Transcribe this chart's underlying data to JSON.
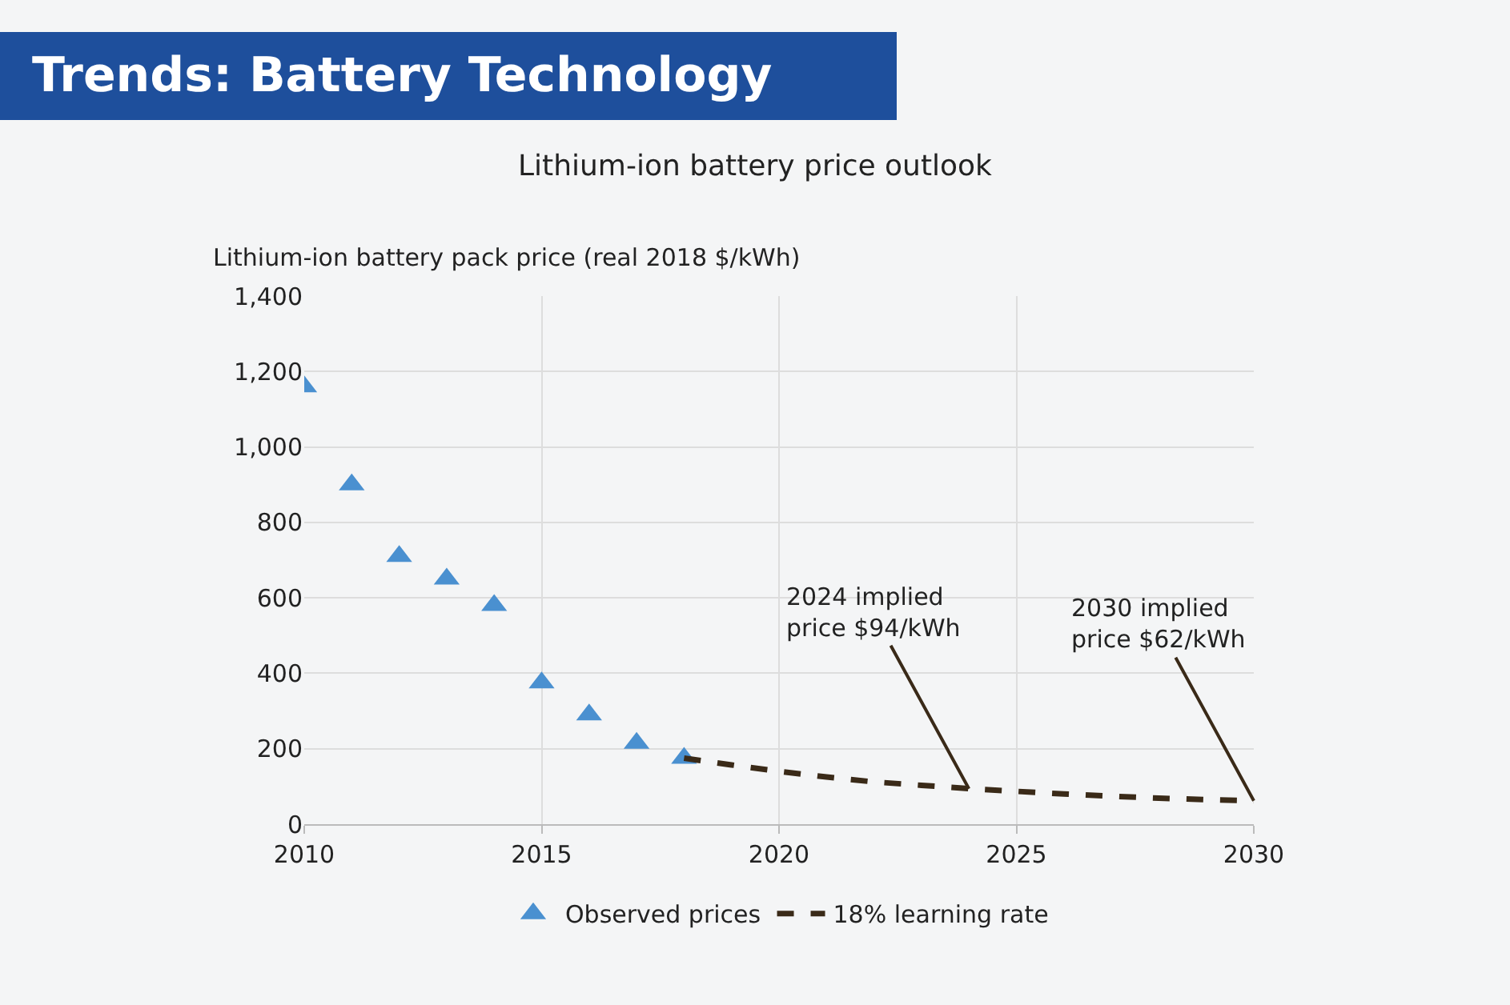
{
  "chart_data": {
    "type": "scatter",
    "title": "Trends: Battery Technology",
    "subtitle": "Lithium-ion battery price outlook",
    "ylabel": "Lithium-ion battery pack price (real 2018 $/kWh)",
    "series": [
      {
        "name": "Observed prices",
        "marker": "triangle",
        "color": "#4a90d0",
        "x": [
          2010,
          2011,
          2012,
          2013,
          2014,
          2015,
          2016,
          2017,
          2018
        ],
        "values": [
          1160,
          900,
          710,
          650,
          580,
          375,
          290,
          215,
          175
        ]
      },
      {
        "name": "18% learning rate",
        "type": "line",
        "line_style": "dashed",
        "color": "#3a2a18",
        "x": [
          2018,
          2019,
          2020,
          2021,
          2022,
          2023,
          2024,
          2025,
          2026,
          2027,
          2028,
          2029,
          2030
        ],
        "values": [
          175,
          157,
          140,
          125,
          112,
          103,
          94,
          87,
          80,
          74,
          69,
          65,
          62
        ]
      }
    ],
    "xlim": [
      2010,
      2030
    ],
    "xticks": [
      2010,
      2015,
      2020,
      2025,
      2030
    ],
    "ylim": [
      0,
      1400
    ],
    "yticks": [
      0,
      {
        "value": 200,
        "label": "200"
      },
      {
        "value": 400,
        "label": "400"
      },
      {
        "value": 600,
        "label": "600"
      },
      {
        "value": 800,
        "label": "800"
      },
      {
        "value": 1000,
        "label": "1,000"
      },
      {
        "value": 1200,
        "label": "1,200"
      },
      {
        "value": 1400,
        "label": "1,400"
      }
    ],
    "grid": true,
    "legend": "bottom",
    "annotations": [
      {
        "text": "2024 implied\nprice $94/kWh",
        "x": 2024,
        "y": 94
      },
      {
        "text": "2030 implied\nprice $62/kWh",
        "x": 2030,
        "y": 62
      }
    ]
  }
}
